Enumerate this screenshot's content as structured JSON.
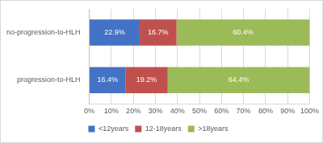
{
  "chart_data": {
    "type": "bar",
    "orientation": "horizontal",
    "stacked": true,
    "categories": [
      "no-progression-to-HLH",
      "progression-to-HLH"
    ],
    "series": [
      {
        "name": "<12years",
        "color": "#4472c4",
        "values": [
          22.9,
          16.4
        ],
        "value_labels": [
          "22.9%",
          "16.4%"
        ]
      },
      {
        "name": "12-18years",
        "color": "#c0504d",
        "values": [
          16.7,
          19.2
        ],
        "value_labels": [
          "16.7%",
          "19.2%"
        ]
      },
      {
        "name": ">18years",
        "color": "#9bbb59",
        "values": [
          60.4,
          64.4
        ],
        "value_labels": [
          "60.4%",
          "64.4%"
        ]
      }
    ],
    "xlim": [
      0,
      100
    ],
    "xticks": [
      {
        "value": 0,
        "label": "0%"
      },
      {
        "value": 10,
        "label": "10%"
      },
      {
        "value": 20,
        "label": "20%"
      },
      {
        "value": 30,
        "label": "30%"
      },
      {
        "value": 40,
        "label": "40%"
      },
      {
        "value": 50,
        "label": "50%"
      },
      {
        "value": 60,
        "label": "60%"
      },
      {
        "value": 70,
        "label": "70%"
      },
      {
        "value": 80,
        "label": "80%"
      },
      {
        "value": 90,
        "label": "90%"
      },
      {
        "value": 100,
        "label": "100%"
      }
    ],
    "grid": true,
    "legend": "bottom",
    "data_labels": true
  }
}
